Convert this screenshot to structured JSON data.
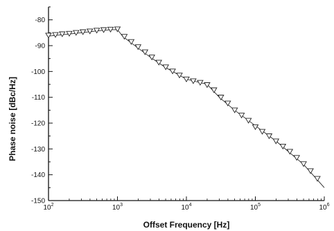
{
  "chart_data": {
    "type": "line",
    "title": "",
    "xlabel": "Offset Frequency [Hz]",
    "ylabel": "Phase noise [dBc/Hz]",
    "x_scale": "log",
    "xlim": [
      100,
      1000000
    ],
    "ylim": [
      -150,
      -75
    ],
    "x_ticks": [
      {
        "value": 100,
        "base": "10",
        "exp": "2"
      },
      {
        "value": 1000,
        "base": "10",
        "exp": "3"
      },
      {
        "value": 10000,
        "base": "10",
        "exp": "4"
      },
      {
        "value": 100000,
        "base": "10",
        "exp": "5"
      },
      {
        "value": 1000000,
        "base": "10",
        "exp": "6"
      }
    ],
    "y_ticks": [
      -80,
      -90,
      -100,
      -110,
      -120,
      -130,
      -140,
      -150
    ],
    "grid": false,
    "line": {
      "x": [
        100,
        200,
        300,
        500,
        800,
        1000,
        1200,
        1600,
        2000,
        3000,
        5000,
        10000,
        20000,
        30000,
        50000,
        100000,
        200000,
        500000,
        1000000
      ],
      "y": [
        -86.3,
        -85.5,
        -85,
        -84.3,
        -83.8,
        -83.8,
        -86.5,
        -89,
        -91,
        -94.5,
        -98.5,
        -103,
        -105,
        -110,
        -115,
        -121,
        -127,
        -136,
        -145
      ]
    },
    "markers": {
      "symbol": "inverted-triangle",
      "x": [
        100,
        126,
        158,
        200,
        251,
        316,
        398,
        501,
        631,
        794,
        1000,
        1259,
        1585,
        1995,
        2512,
        3162,
        3981,
        5012,
        6310,
        7943,
        10000,
        12589,
        15849,
        19953,
        25119,
        31623,
        39811,
        50119,
        63096,
        79433,
        100000,
        125893,
        158489,
        199526,
        251189,
        316228,
        398107,
        501187,
        630957,
        794328
      ],
      "y": [
        -86,
        -85.8,
        -85.5,
        -85.3,
        -85,
        -84.7,
        -84.4,
        -84.1,
        -83.9,
        -83.7,
        -83.6,
        -86.5,
        -88.5,
        -90.5,
        -92.5,
        -94.5,
        -96.5,
        -98.3,
        -99.9,
        -101.5,
        -103,
        -103.7,
        -104.3,
        -105.2,
        -107.2,
        -110,
        -112.3,
        -115,
        -117,
        -119,
        -121.5,
        -123.3,
        -125,
        -127,
        -129,
        -131,
        -133.4,
        -135.8,
        -138.5,
        -141.5
      ]
    },
    "series_color": "#222222"
  }
}
